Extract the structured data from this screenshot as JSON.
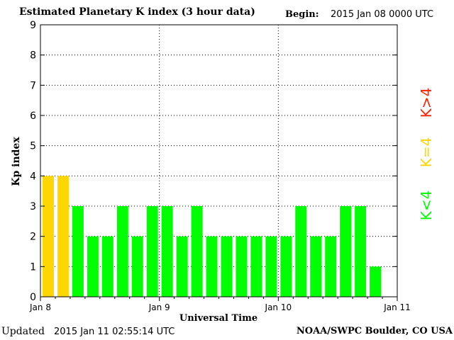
{
  "header": {
    "title": "Estimated Planetary K index (3 hour data)",
    "begin_label": "Begin:",
    "begin_value": "2015 Jan 08 0000 UTC"
  },
  "footer": {
    "updated_label": "Updated",
    "updated_value": "2015 Jan 11 02:55:14 UTC",
    "credit": "NOAA/SWPC Boulder, CO USA"
  },
  "chart_data": {
    "type": "bar",
    "title": "Estimated Planetary K index (3 hour data)",
    "xlabel": "Universal Time",
    "ylabel": "Kp index",
    "ylim": [
      0,
      9
    ],
    "yticks": [
      "0",
      "1",
      "2",
      "3",
      "4",
      "5",
      "6",
      "7",
      "8",
      "9"
    ],
    "xticks": [
      "Jan 8",
      "Jan 9",
      "Jan 10",
      "Jan 11"
    ],
    "grid": true,
    "categories": [
      "Jan 8 00",
      "Jan 8 03",
      "Jan 8 06",
      "Jan 8 09",
      "Jan 8 12",
      "Jan 8 15",
      "Jan 8 18",
      "Jan 8 21",
      "Jan 9 00",
      "Jan 9 03",
      "Jan 9 06",
      "Jan 9 09",
      "Jan 9 12",
      "Jan 9 15",
      "Jan 9 18",
      "Jan 9 21",
      "Jan 10 00",
      "Jan 10 03",
      "Jan 10 06",
      "Jan 10 09",
      "Jan 10 12",
      "Jan 10 15",
      "Jan 10 18"
    ],
    "values": [
      4,
      4,
      3,
      2,
      2,
      3,
      2,
      3,
      3,
      2,
      3,
      2,
      2,
      2,
      2,
      2,
      2,
      3,
      2,
      2,
      3,
      3,
      1
    ],
    "colors": {
      "below": "#00ff00",
      "equal": "#ffd700",
      "above": "#ff2200"
    },
    "legend": [
      {
        "label": "K<4",
        "color": "#00ff00"
      },
      {
        "label": "K=4",
        "color": "#ffd700"
      },
      {
        "label": "K>4",
        "color": "#ff2200"
      }
    ]
  }
}
